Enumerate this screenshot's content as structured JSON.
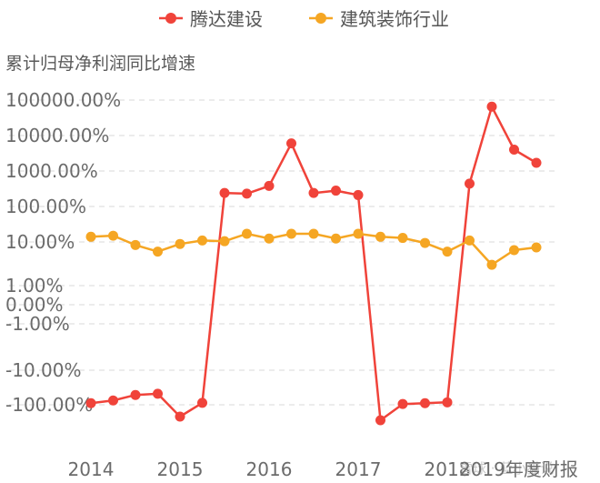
{
  "chart_data": {
    "type": "line",
    "ylabel": "累计归母净利润同比增速",
    "y_scale": "symlog",
    "ytick_labels": [
      "100000.00%",
      "10000.00%",
      "1000.00%",
      "100.00%",
      "10.00%",
      "1.00%",
      "0.00%",
      "-1.00%",
      "-10.00%",
      "-100.00%"
    ],
    "ytick_values": [
      100000,
      10000,
      1000,
      100,
      10,
      1,
      0,
      -1,
      -10,
      -100
    ],
    "xtick_labels": [
      "2014",
      "2015",
      "2016",
      "2017",
      "2018"
    ],
    "x_note": "2019年度财报",
    "x": [
      2014.0,
      2014.25,
      2014.5,
      2014.75,
      2015.0,
      2015.25,
      2015.5,
      2015.75,
      2016.0,
      2016.25,
      2016.5,
      2016.75,
      2017.0,
      2017.25,
      2017.5,
      2017.75,
      2018.0,
      2018.25,
      2018.5,
      2018.75,
      2019.0
    ],
    "series": [
      {
        "name": "腾达建设",
        "color": "#f0433a",
        "values": [
          -90,
          -75,
          -52,
          -48,
          -220,
          -88,
          240,
          230,
          380,
          6000,
          240,
          280,
          210,
          -280,
          -95,
          -90,
          -85,
          440,
          65000,
          4000,
          1700
        ]
      },
      {
        "name": "建筑装饰行业",
        "color": "#f5a623",
        "values": [
          14,
          15,
          8.5,
          6,
          9,
          11,
          10.5,
          17,
          12.5,
          17,
          17,
          12.5,
          17,
          14,
          13,
          9.5,
          6,
          11,
          3,
          6.5,
          7.5
        ]
      }
    ]
  },
  "watermark": "雪球 · 蓝小猫说"
}
